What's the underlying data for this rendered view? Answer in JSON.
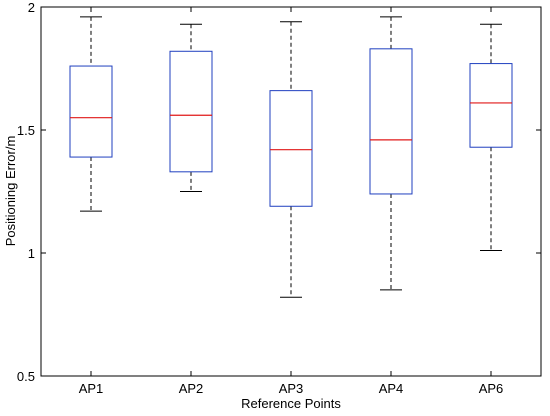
{
  "chart_data": {
    "type": "box",
    "xlabel": "Reference Points",
    "ylabel": "Positioning Error/m",
    "ylim": [
      0.5,
      2
    ],
    "yticks": [
      0.5,
      1,
      1.5,
      2
    ],
    "ytick_labels": [
      "0.5",
      "1",
      "1.5",
      "2"
    ],
    "grid": false,
    "categories": [
      "AP1",
      "AP2",
      "AP3",
      "AP4",
      "AP6"
    ],
    "boxes": [
      {
        "category": "AP1",
        "whisker_low": 1.17,
        "q1": 1.39,
        "median": 1.55,
        "q3": 1.76,
        "whisker_high": 1.96
      },
      {
        "category": "AP2",
        "whisker_low": 1.25,
        "q1": 1.33,
        "median": 1.56,
        "q3": 1.82,
        "whisker_high": 1.93
      },
      {
        "category": "AP3",
        "whisker_low": 0.82,
        "q1": 1.19,
        "median": 1.42,
        "q3": 1.66,
        "whisker_high": 1.94
      },
      {
        "category": "AP4",
        "whisker_low": 0.85,
        "q1": 1.24,
        "median": 1.46,
        "q3": 1.83,
        "whisker_high": 1.96
      },
      {
        "category": "AP6",
        "whisker_low": 1.01,
        "q1": 1.43,
        "median": 1.61,
        "q3": 1.77,
        "whisker_high": 1.93
      }
    ],
    "colors": {
      "box": "#1f3fbf",
      "median": "#e01818",
      "whisker": "#000000",
      "axis": "#000000"
    }
  }
}
